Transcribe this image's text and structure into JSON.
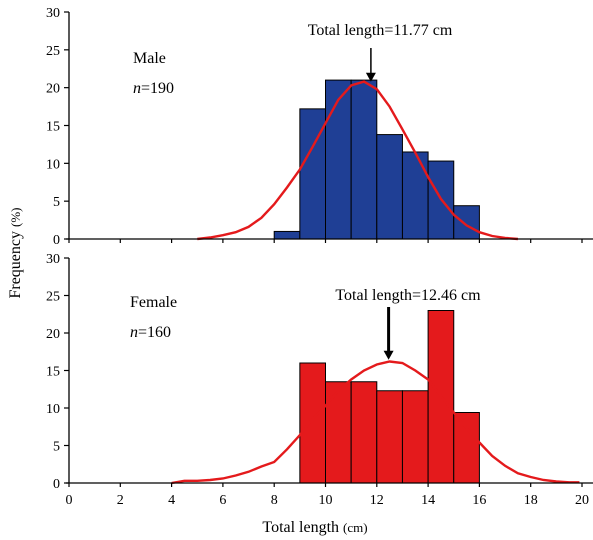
{
  "chart_data": [
    {
      "type": "bar",
      "panel": "male",
      "sex_label": "Male",
      "n_label": "n",
      "n_value": "=190",
      "annotation": "Total length=11.77 cm",
      "mean": 11.77,
      "bin_edges": [
        8,
        9,
        10,
        11,
        12,
        13,
        14,
        15,
        16
      ],
      "values": [
        1.0,
        17.2,
        21.0,
        21.0,
        13.8,
        11.5,
        10.3,
        4.4
      ],
      "bar_color": "#1f3f95",
      "curve_color": "#e41a1c",
      "curve": {
        "x": [
          5,
          5.5,
          6,
          6.5,
          7,
          7.5,
          8,
          8.5,
          9,
          9.5,
          10,
          10.5,
          11,
          11.5,
          12,
          12.5,
          13,
          13.5,
          14,
          14.5,
          15,
          15.5,
          16,
          16.5,
          17,
          17.5
        ],
        "y": [
          0,
          0.2,
          0.5,
          0.9,
          1.6,
          2.8,
          4.6,
          6.8,
          9.2,
          12.2,
          15.3,
          18.4,
          20.3,
          20.8,
          19.8,
          17.5,
          14.5,
          11.4,
          8.2,
          5.3,
          3.2,
          1.8,
          0.9,
          0.4,
          0.15,
          0
        ]
      },
      "ylim": [
        0,
        30
      ],
      "yticks": [
        0,
        5,
        10,
        15,
        20,
        25,
        30
      ]
    },
    {
      "type": "bar",
      "panel": "female",
      "sex_label": "Female",
      "n_label": "n",
      "n_value": "=160",
      "annotation": "Total length=12.46 cm",
      "mean": 12.46,
      "bin_edges": [
        9,
        10,
        11,
        12,
        13,
        14,
        15,
        16
      ],
      "values": [
        16.0,
        13.5,
        13.5,
        12.3,
        12.3,
        23.0,
        9.4
      ],
      "bar_color": "#e41a1c",
      "curve_color": "#e41a1c",
      "curve": {
        "x": [
          4,
          4.5,
          5,
          5.5,
          6,
          6.5,
          7,
          7.5,
          8,
          8.5,
          9,
          9.5,
          10,
          10.5,
          11,
          11.5,
          12,
          12.5,
          13,
          13.5,
          14,
          14.5,
          15,
          15.5,
          16,
          16.5,
          17,
          17.5,
          18,
          18.5,
          19,
          19.5,
          19.9
        ],
        "y": [
          0,
          0.3,
          0.3,
          0.4,
          0.6,
          1.0,
          1.5,
          2.2,
          2.8,
          4.5,
          6.4,
          8.6,
          10.3,
          12.3,
          13.8,
          15.0,
          15.8,
          16.2,
          16.0,
          15.0,
          13.8,
          11.6,
          9.4,
          7.3,
          5.4,
          3.6,
          2.3,
          1.3,
          0.8,
          0.4,
          0.2,
          0.1,
          0.1
        ]
      },
      "ylim": [
        0,
        30
      ],
      "yticks": [
        0,
        5,
        10,
        15,
        20,
        25,
        30
      ]
    }
  ],
  "axes": {
    "xlabel_main": "Total length",
    "xlabel_unit": "(cm)",
    "ylabel_main": "Frequency",
    "ylabel_unit": "(%)",
    "xlim": [
      0,
      20
    ],
    "xticks": [
      0,
      2,
      4,
      6,
      8,
      10,
      12,
      14,
      16,
      18,
      20
    ],
    "xtick_labels": [
      "0",
      "2",
      "4",
      "6",
      "8",
      "10",
      "12",
      "14",
      "16",
      "18",
      "20"
    ]
  }
}
